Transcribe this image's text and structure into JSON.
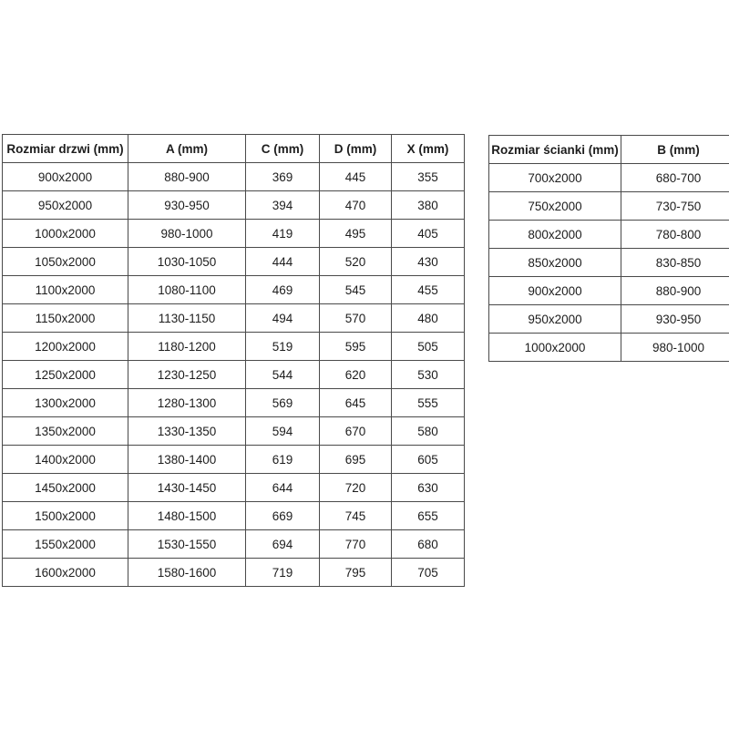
{
  "page": {
    "background_color": "#ffffff",
    "text_color": "#1d1d1d",
    "border_color": "#4a4a4a"
  },
  "doors_table": {
    "headers": [
      "Rozmiar drzwi (mm)",
      "A (mm)",
      "C (mm)",
      "D (mm)",
      "X (mm)"
    ],
    "rows": [
      [
        "900x2000",
        "880-900",
        "369",
        "445",
        "355"
      ],
      [
        "950x2000",
        "930-950",
        "394",
        "470",
        "380"
      ],
      [
        "1000x2000",
        "980-1000",
        "419",
        "495",
        "405"
      ],
      [
        "1050x2000",
        "1030-1050",
        "444",
        "520",
        "430"
      ],
      [
        "1100x2000",
        "1080-1100",
        "469",
        "545",
        "455"
      ],
      [
        "1150x2000",
        "1130-1150",
        "494",
        "570",
        "480"
      ],
      [
        "1200x2000",
        "1180-1200",
        "519",
        "595",
        "505"
      ],
      [
        "1250x2000",
        "1230-1250",
        "544",
        "620",
        "530"
      ],
      [
        "1300x2000",
        "1280-1300",
        "569",
        "645",
        "555"
      ],
      [
        "1350x2000",
        "1330-1350",
        "594",
        "670",
        "580"
      ],
      [
        "1400x2000",
        "1380-1400",
        "619",
        "695",
        "605"
      ],
      [
        "1450x2000",
        "1430-1450",
        "644",
        "720",
        "630"
      ],
      [
        "1500x2000",
        "1480-1500",
        "669",
        "745",
        "655"
      ],
      [
        "1550x2000",
        "1530-1550",
        "694",
        "770",
        "680"
      ],
      [
        "1600x2000",
        "1580-1600",
        "719",
        "795",
        "705"
      ]
    ]
  },
  "walls_table": {
    "headers": [
      "Rozmiar ścianki (mm)",
      "B (mm)"
    ],
    "rows": [
      [
        "700x2000",
        "680-700"
      ],
      [
        "750x2000",
        "730-750"
      ],
      [
        "800x2000",
        "780-800"
      ],
      [
        "850x2000",
        "830-850"
      ],
      [
        "900x2000",
        "880-900"
      ],
      [
        "950x2000",
        "930-950"
      ],
      [
        "1000x2000",
        "980-1000"
      ]
    ]
  }
}
